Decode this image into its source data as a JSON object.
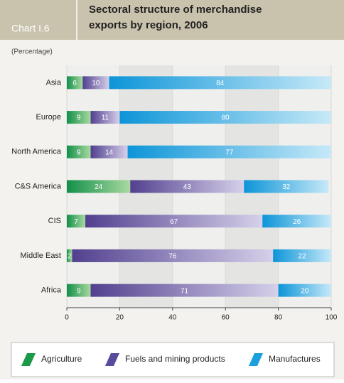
{
  "chart_data": {
    "type": "stacked-bar-horizontal",
    "label": "Chart I.6",
    "title_lines": [
      "Sectoral structure of merchandise",
      "exports by region, 2006"
    ],
    "subtitle": "(Percentage)",
    "categories": [
      "Asia",
      "Europe",
      "North America",
      "C&S America",
      "CIS",
      "Middle East",
      "Africa"
    ],
    "series": [
      {
        "name": "Agriculture",
        "color": "#1a9a48",
        "values": [
          6,
          9,
          9,
          24,
          7,
          2,
          9
        ]
      },
      {
        "name": "Fuels and mining products",
        "color": "#5a4a9c",
        "values": [
          10,
          11,
          14,
          43,
          67,
          76,
          71
        ]
      },
      {
        "name": "Manufactures",
        "color": "#1aa0dc",
        "values": [
          84,
          80,
          77,
          32,
          26,
          22,
          20
        ]
      }
    ],
    "xlim": [
      0,
      100
    ],
    "xticks": [
      0,
      20,
      40,
      60,
      80,
      100
    ],
    "grid": true
  }
}
